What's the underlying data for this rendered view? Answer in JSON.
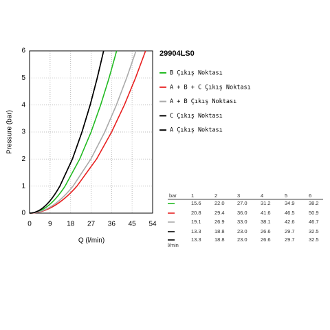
{
  "chart_data": {
    "type": "line",
    "title": "29904LS0",
    "x_label": "Q (l/min)",
    "y_label": "Pressure (bar)",
    "xlim": [
      0,
      54
    ],
    "xticks": [
      0,
      9,
      18,
      27,
      36,
      45,
      54
    ],
    "ylim": [
      0,
      6
    ],
    "yticks": [
      0,
      1,
      2,
      3,
      4,
      5,
      6
    ],
    "grid": true,
    "table_header": "bar",
    "table_unit": "l/min",
    "pressures": [
      1,
      2,
      3,
      4,
      5,
      6
    ],
    "series": [
      {
        "name": "B Çıkış Noktası",
        "color": "#22bb22",
        "values": [
          15.6,
          22.0,
          27.0,
          31.2,
          34.9,
          38.2
        ],
        "value_labels": [
          "15.6",
          "22.0",
          "27.0",
          "31.2",
          "34.9",
          "38.2"
        ]
      },
      {
        "name": "A + B + C Çıkış Noktası",
        "color": "#e82020",
        "values": [
          20.8,
          29.4,
          36.0,
          41.6,
          46.5,
          50.9
        ],
        "value_labels": [
          "20.8",
          "29.4",
          "36.0",
          "41.6",
          "46.5",
          "50.9"
        ]
      },
      {
        "name": "A + B Çıkış Noktası",
        "color": "#aaaaaa",
        "values": [
          19.1,
          26.9,
          33.0,
          38.1,
          42.6,
          46.7
        ],
        "value_labels": [
          "19.1",
          "26.9",
          "33.0",
          "38.1",
          "42.6",
          "46.7"
        ]
      },
      {
        "name": "C Çıkış Noktası",
        "color": "#000000",
        "values": [
          13.3,
          18.8,
          23.0,
          26.6,
          29.7,
          32.5
        ],
        "value_labels": [
          "13.3",
          "18.8",
          "23.0",
          "26.6",
          "29.7",
          "32.5"
        ]
      },
      {
        "name": "A Çıkış Noktası",
        "color": "#000000",
        "values": [
          13.3,
          18.8,
          23.0,
          26.6,
          29.7,
          32.5
        ],
        "value_labels": [
          "13.3",
          "18.8",
          "23.0",
          "26.6",
          "29.7",
          "32.5"
        ]
      }
    ]
  }
}
